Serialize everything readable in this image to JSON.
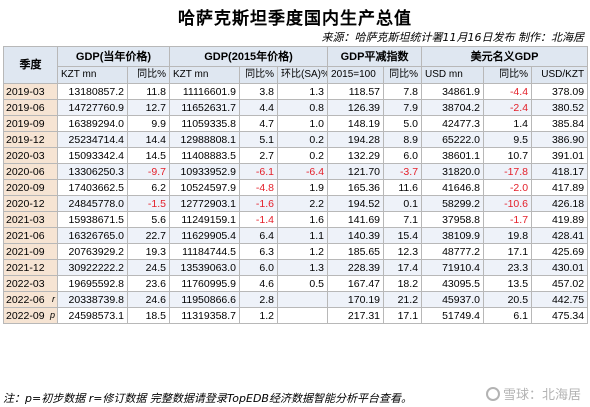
{
  "title": "哈萨克斯坦季度国内生产总值",
  "source": "来源：哈萨克斯坦统计署11月16日发布 制作：北海居",
  "header": {
    "quarter": "季度",
    "groups": [
      "GDP(当年价格)",
      "GDP(2015年价格)",
      "GDP平减指数",
      "美元名义GDP"
    ],
    "subs": [
      "KZT mn",
      "同比%",
      "KZT mn",
      "同比%",
      "环比(SA)%",
      "2015=100",
      "同比%",
      "USD mn",
      "同比%",
      "USD/KZT"
    ]
  },
  "rows": [
    {
      "q": "2019-03",
      "flag": "",
      "v": [
        "13180857.2",
        "11.8",
        "11116601.9",
        "3.8",
        "1.3",
        "118.57",
        "7.8",
        "34861.9",
        "-4.4",
        "378.09"
      ]
    },
    {
      "q": "2019-06",
      "flag": "",
      "v": [
        "14727760.9",
        "12.7",
        "11652631.7",
        "4.4",
        "0.8",
        "126.39",
        "7.9",
        "38704.2",
        "-2.4",
        "380.52"
      ]
    },
    {
      "q": "2019-09",
      "flag": "",
      "v": [
        "16389294.0",
        "9.9",
        "11059335.8",
        "4.7",
        "1.0",
        "148.19",
        "5.0",
        "42477.3",
        "1.4",
        "385.84"
      ]
    },
    {
      "q": "2019-12",
      "flag": "",
      "v": [
        "25234714.4",
        "14.4",
        "12988808.1",
        "5.1",
        "0.2",
        "194.28",
        "8.9",
        "65222.0",
        "9.5",
        "386.90"
      ]
    },
    {
      "q": "2020-03",
      "flag": "",
      "v": [
        "15093342.4",
        "14.5",
        "11408883.5",
        "2.7",
        "0.2",
        "132.29",
        "6.0",
        "38601.1",
        "10.7",
        "391.01"
      ]
    },
    {
      "q": "2020-06",
      "flag": "",
      "v": [
        "13306250.3",
        "-9.7",
        "10933952.9",
        "-6.1",
        "-6.4",
        "121.70",
        "-3.7",
        "31820.0",
        "-17.8",
        "418.17"
      ]
    },
    {
      "q": "2020-09",
      "flag": "",
      "v": [
        "17403662.5",
        "6.2",
        "10524597.9",
        "-4.8",
        "1.9",
        "165.36",
        "11.6",
        "41646.8",
        "-2.0",
        "417.89"
      ]
    },
    {
      "q": "2020-12",
      "flag": "",
      "v": [
        "24845778.0",
        "-1.5",
        "12772903.1",
        "-1.6",
        "2.2",
        "194.52",
        "0.1",
        "58299.2",
        "-10.6",
        "426.18"
      ]
    },
    {
      "q": "2021-03",
      "flag": "",
      "v": [
        "15938671.5",
        "5.6",
        "11249159.1",
        "-1.4",
        "1.6",
        "141.69",
        "7.1",
        "37958.8",
        "-1.7",
        "419.89"
      ]
    },
    {
      "q": "2021-06",
      "flag": "",
      "v": [
        "16326765.0",
        "22.7",
        "11629905.4",
        "6.4",
        "1.1",
        "140.39",
        "15.4",
        "38109.9",
        "19.8",
        "428.41"
      ]
    },
    {
      "q": "2021-09",
      "flag": "",
      "v": [
        "20763929.2",
        "19.3",
        "11184744.5",
        "6.3",
        "1.2",
        "185.65",
        "12.3",
        "48777.2",
        "17.1",
        "425.69"
      ]
    },
    {
      "q": "2021-12",
      "flag": "",
      "v": [
        "30922222.2",
        "24.5",
        "13539063.0",
        "6.0",
        "1.3",
        "228.39",
        "17.4",
        "71910.4",
        "23.3",
        "430.01"
      ]
    },
    {
      "q": "2022-03",
      "flag": "",
      "v": [
        "19695592.8",
        "23.6",
        "11760995.9",
        "4.6",
        "0.5",
        "167.47",
        "18.2",
        "43095.5",
        "13.5",
        "457.02"
      ]
    },
    {
      "q": "2022-06",
      "flag": "r",
      "v": [
        "20338739.8",
        "24.6",
        "11950866.6",
        "2.8",
        "",
        "170.19",
        "21.2",
        "45937.0",
        "20.5",
        "442.75"
      ]
    },
    {
      "q": "2022-09",
      "flag": "p",
      "v": [
        "24598573.1",
        "18.5",
        "11319358.7",
        "1.2",
        "",
        "217.31",
        "17.1",
        "51749.4",
        "6.1",
        "475.34"
      ]
    }
  ],
  "note": "注：p=初步数据 r=修订数据 完整数据请登录TopEDB经济数据智能分析平台查看。",
  "watermark": "雪球：北海居"
}
